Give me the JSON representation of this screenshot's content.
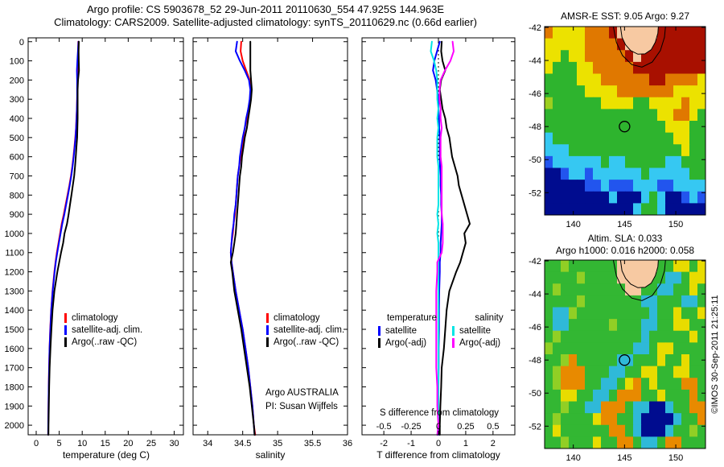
{
  "title": {
    "line1": "Argo profile: CS 5903678_52 29-Jun-2011 20110630_554 47.925S 144.963E",
    "line2": "Climatology: CARS2009. Satellite-adjusted climatology: synTS_20110629.nc (0.66d earlier)"
  },
  "colors": {
    "climatology": "#ff0000",
    "satellite_adj": "#0000ff",
    "argo": "#000000",
    "sal_satellite": "#00e5e5",
    "sal_argo": "#ff00ff",
    "land": "#f7c9a2",
    "frame": "#000000"
  },
  "depths": [
    0,
    50,
    100,
    150,
    200,
    250,
    300,
    350,
    400,
    450,
    500,
    550,
    600,
    650,
    700,
    750,
    800,
    850,
    900,
    950,
    1000,
    1050,
    1100,
    1150,
    1200,
    1300,
    1400,
    1500,
    1600,
    1700,
    1800,
    1900,
    2000,
    2050
  ],
  "chart_data": [
    {
      "id": "temperature-profile",
      "type": "line",
      "xlabel": "temperature (deg C)",
      "xlim": [
        -1.75,
        32
      ],
      "xticks": [
        0,
        5,
        10,
        15,
        20,
        25,
        30
      ],
      "ylim": [
        -20,
        2050
      ],
      "yticks": [
        0,
        100,
        200,
        300,
        400,
        500,
        600,
        700,
        800,
        900,
        1000,
        1100,
        1200,
        1300,
        1400,
        1500,
        1600,
        1700,
        1800,
        1900,
        2000
      ],
      "ylabels": true,
      "legend": [
        {
          "label": "climatology",
          "color": "#ff0000"
        },
        {
          "label": "satellite-adj. clim.",
          "color": "#0000ff"
        },
        {
          "label": "Argo(..raw -QC)",
          "color": "#000000"
        }
      ],
      "series": [
        {
          "name": "climatology",
          "color": "#ff0000",
          "values": [
            9.15,
            9.12,
            9.1,
            9.05,
            9.0,
            8.95,
            8.9,
            8.85,
            8.75,
            8.65,
            8.5,
            8.3,
            8.1,
            7.85,
            7.55,
            7.2,
            6.8,
            6.4,
            6.0,
            5.55,
            5.2,
            4.85,
            4.5,
            4.2,
            3.95,
            3.55,
            3.25,
            3.05,
            2.9,
            2.8,
            2.72,
            2.67,
            2.63,
            2.6
          ]
        },
        {
          "name": "satellite-adj. clim.",
          "color": "#0000ff",
          "values": [
            9.2,
            9.07,
            8.95,
            8.85,
            8.9,
            8.9,
            8.9,
            8.85,
            8.77,
            8.68,
            8.55,
            8.35,
            8.15,
            7.91,
            7.63,
            7.28,
            6.9,
            6.5,
            6.12,
            5.67,
            5.3,
            4.93,
            4.58,
            4.25,
            4.0,
            3.58,
            3.27,
            3.07,
            2.91,
            2.81,
            2.72,
            2.67,
            2.63,
            2.6
          ]
        },
        {
          "name": "Argo(..raw -QC)",
          "color": "#000000",
          "values": [
            9.27,
            9.22,
            9.25,
            9.3,
            9.1,
            9.0,
            9.0,
            9.0,
            9.0,
            8.95,
            8.9,
            8.75,
            8.6,
            8.45,
            8.25,
            7.95,
            7.65,
            7.35,
            7.05,
            6.7,
            6.15,
            5.85,
            5.4,
            5.0,
            4.6,
            3.95,
            3.55,
            3.3,
            3.1,
            2.92,
            2.82,
            2.74,
            2.68,
            2.65
          ]
        }
      ]
    },
    {
      "id": "salinity-profile",
      "type": "line",
      "xlabel": "salinity",
      "xlim": [
        33.79,
        36.0
      ],
      "xticks": [
        34,
        34.5,
        35,
        35.5,
        36
      ],
      "ylim": [
        -20,
        2050
      ],
      "yticks": [
        0,
        100,
        200,
        300,
        400,
        500,
        600,
        700,
        800,
        900,
        1000,
        1100,
        1200,
        1300,
        1400,
        1500,
        1600,
        1700,
        1800,
        1900,
        2000
      ],
      "ylabels": false,
      "legend": [
        {
          "label": "climatology",
          "color": "#ff0000"
        },
        {
          "label": "satellite-adj. clim.",
          "color": "#0000ff"
        },
        {
          "label": "Argo(..raw -QC)",
          "color": "#000000"
        }
      ],
      "annotation": [
        "Argo AUSTRALIA",
        "PI: Susan Wijffels"
      ],
      "series": [
        {
          "name": "climatology",
          "color": "#ff0000",
          "values": [
            34.48,
            34.47,
            34.5,
            34.55,
            34.6,
            34.62,
            34.61,
            34.58,
            34.56,
            34.53,
            34.51,
            34.49,
            34.47,
            34.45,
            34.43,
            34.42,
            34.41,
            34.4,
            34.39,
            34.37,
            34.36,
            34.34,
            34.33,
            34.34,
            34.36,
            34.4,
            34.45,
            34.5,
            34.54,
            34.58,
            34.61,
            34.64,
            34.66,
            34.68
          ]
        },
        {
          "name": "satellite-adj. clim.",
          "color": "#0000ff",
          "values": [
            34.42,
            34.4,
            34.46,
            34.53,
            34.59,
            34.61,
            34.6,
            34.58,
            34.55,
            34.53,
            34.5,
            34.48,
            34.46,
            34.45,
            34.43,
            34.42,
            34.41,
            34.4,
            34.38,
            34.37,
            34.35,
            34.34,
            34.33,
            34.34,
            34.36,
            34.4,
            34.45,
            34.5,
            34.54,
            34.58,
            34.61,
            34.64,
            34.66,
            34.67
          ]
        },
        {
          "name": "Argo(..raw -QC)",
          "color": "#000000",
          "values": [
            34.61,
            34.61,
            34.61,
            34.61,
            34.62,
            34.63,
            34.62,
            34.6,
            34.58,
            34.56,
            34.53,
            34.51,
            34.49,
            34.48,
            34.46,
            34.45,
            34.44,
            34.43,
            34.42,
            34.41,
            34.4,
            34.38,
            34.36,
            34.33,
            34.35,
            34.38,
            34.43,
            34.48,
            34.52,
            34.56,
            34.6,
            34.63,
            34.66,
            34.67
          ]
        }
      ]
    },
    {
      "id": "difference-profile",
      "type": "line",
      "xlabel": "T difference from climatology",
      "xlim": [
        -2.8,
        2.8
      ],
      "xticks": [
        -2,
        -1,
        0,
        1,
        2
      ],
      "ylim": [
        -20,
        2050
      ],
      "yticks": [
        0,
        100,
        200,
        300,
        400,
        500,
        600,
        700,
        800,
        900,
        1000,
        1100,
        1200,
        1300,
        1400,
        1500,
        1600,
        1700,
        1800,
        1900,
        2000
      ],
      "ylabels": false,
      "zero_line": true,
      "s_axis": {
        "label": "S difference from climatology",
        "ticks": [
          "-0.5",
          "-0.25",
          "0",
          "0.25",
          "0.5"
        ],
        "scale": 4
      },
      "legend_groups": [
        {
          "header": "temperature",
          "items": [
            {
              "label": "satellite",
              "color": "#0000ff"
            },
            {
              "label": "Argo(-adj)",
              "color": "#000000"
            }
          ]
        },
        {
          "header": "salinity",
          "items": [
            {
              "label": "satellite",
              "color": "#00e5e5"
            },
            {
              "label": "Argo(-adj)",
              "color": "#ff00ff"
            }
          ]
        }
      ],
      "series": [
        {
          "name": "T satellite",
          "color": "#0000ff",
          "scale": 1,
          "values": [
            0.05,
            -0.05,
            -0.15,
            -0.2,
            -0.1,
            -0.05,
            0,
            0,
            0.02,
            0.03,
            0.05,
            0.05,
            0.05,
            0.06,
            0.08,
            0.08,
            0.1,
            0.1,
            0.12,
            0.12,
            0.1,
            0.08,
            0.08,
            0.05,
            0.05,
            0.03,
            0.02,
            0.02,
            0.01,
            0.01,
            0,
            0,
            0,
            0
          ]
        },
        {
          "name": "S satellite",
          "color": "#00e5e5",
          "scale": 4,
          "values": [
            -0.06,
            -0.07,
            -0.04,
            -0.02,
            -0.01,
            -0.01,
            -0.01,
            0,
            -0.01,
            0,
            -0.01,
            -0.01,
            -0.01,
            0,
            0,
            0,
            0,
            0,
            -0.01,
            0,
            -0.01,
            0,
            0,
            0,
            0,
            0,
            0,
            0,
            0,
            0,
            0,
            0,
            0,
            -0.01
          ]
        },
        {
          "name": "T Argo(-adj)",
          "color": "#000000",
          "scale": 1,
          "values": [
            0.12,
            0.1,
            0.15,
            0.25,
            0.1,
            0.05,
            0.1,
            0.15,
            0.25,
            0.3,
            0.4,
            0.45,
            0.5,
            0.6,
            0.7,
            0.75,
            0.85,
            0.95,
            1.05,
            1.15,
            0.95,
            1.0,
            0.9,
            0.8,
            0.65,
            0.4,
            0.3,
            0.25,
            0.2,
            0.12,
            0.1,
            0.07,
            0.05,
            0.05
          ]
        },
        {
          "name": "S Argo(-adj)",
          "color": "#ff00ff",
          "scale": 4,
          "values": [
            0.13,
            0.14,
            0.11,
            0.06,
            0.02,
            0.01,
            0.01,
            0.02,
            0.02,
            0.03,
            0.02,
            0.02,
            0.02,
            0.03,
            0.03,
            0.03,
            0.03,
            0.03,
            0.03,
            0.04,
            0.04,
            0.04,
            0.03,
            -0.01,
            -0.01,
            -0.02,
            -0.02,
            -0.02,
            -0.02,
            -0.02,
            -0.01,
            -0.01,
            0,
            -0.01
          ]
        }
      ]
    }
  ],
  "maps": [
    {
      "id": "sst-map",
      "title": "AMSR-E SST: 9.05 Argo: 9.27",
      "xticks": [
        140,
        145,
        150
      ],
      "yticks": [
        -42,
        -44,
        -46,
        -48,
        -50,
        -52
      ],
      "lon_range": [
        137.2,
        152.9
      ],
      "lat_range": [
        -41.95,
        -53.35
      ],
      "marker": {
        "lon": 145,
        "lat": -48
      },
      "palette": {
        "R": "#a81000",
        "O": "#e07800",
        "Y": "#ece200",
        "g": "#9ccf1f",
        "G": "#2eb42e",
        "C": "#36c8f2",
        "B": "#2255ee",
        "N": "#000c8f",
        "L": "#f7c9a2"
      },
      "grid": [
        "OYYYYOOORLLLLLRRRRRR",
        "YYYYYOOOORLLLRRRRRRR",
        "YYGYYOOOOORLRRRRRRRR",
        "YGGGYYOOOOORRRRRRRRR",
        "GGGGYYYOOOOOORROOOOY",
        "GGGGGYYYYOOOOOOOYYYY",
        "gGGGGGGYYYYGGYYYYOYY",
        "GGGGGGGGGGGGGGYYOOYG",
        "GGGGGGGGGGGGGGGYYYGG",
        "CGGGGGGGGGGGGGGGYYGG",
        "CCCGGGGGGGGGGGGGGYGG",
        "BCCCCCCGCCGGGGGCCGGG",
        "NNBCCBCCCCCCGCCCCCGG",
        "NNNNNBBCBBBCCCBBCCCC",
        "NNNNNNNNCNNNCGCNNBCB",
        "NNNNNNNNNNNCGGCNNNNN"
      ],
      "coast": [
        [
          144.6,
          -41.95
        ],
        [
          144.75,
          -42.6
        ],
        [
          145.1,
          -43.05
        ],
        [
          145.6,
          -43.4
        ],
        [
          146.3,
          -43.62
        ],
        [
          147.0,
          -43.6
        ],
        [
          147.6,
          -43.35
        ],
        [
          148.0,
          -42.9
        ],
        [
          148.25,
          -42.35
        ],
        [
          148.3,
          -41.95
        ]
      ],
      "contour": [
        [
          143.9,
          -41.95
        ],
        [
          144.2,
          -42.9
        ],
        [
          144.8,
          -43.7
        ],
        [
          145.7,
          -44.25
        ],
        [
          146.7,
          -44.4
        ],
        [
          147.7,
          -44.1
        ],
        [
          148.5,
          -43.4
        ],
        [
          148.9,
          -42.6
        ],
        [
          149.0,
          -41.95
        ]
      ]
    },
    {
      "id": "sla-map",
      "title_line1": "Altim. SLA: 0.033",
      "title_line2": "Argo h1000: 0.016 h2000: 0.058",
      "watermark": "©IMOS 30-Sep-2011 21:25:11",
      "xticks": [
        140,
        145,
        150
      ],
      "yticks": [
        -42,
        -44,
        -46,
        -48,
        -50,
        -52
      ],
      "lon_range": [
        137.2,
        152.9
      ],
      "lat_range": [
        -41.95,
        -53.35
      ],
      "marker": {
        "lon": 145,
        "lat": -48
      },
      "palette": {
        "O": "#e88a00",
        "Y": "#e8dc00",
        "g": "#91cf25",
        "G": "#33b733",
        "C": "#2fb9d8",
        "B": "#2255ee",
        "N": "#000c8f",
        "L": "#f7c9a2"
      },
      "grid": [
        "GGgGGGGGGLLLLLGGYYGY",
        "GGGGgGGGGLLLLGGCCGYY",
        "GgGGGGGGGGLLGGCCGGYG",
        "GGGGgGGGGGGGCCGGGCCG",
        "GCCgGGGGGGGGGCGGYGGY",
        "GCCGGGGGgGGGCCGGYYGG",
        "GgGGGGGGGGGGCGGGGGYG",
        "gGGGGGGGGGGCCGYYGGGG",
        "GGgOGGGGGCCGGGYGGYGG",
        "GgOOOGGGCCGGYYGGYYGG",
        "GgOOOGGCCGYOGYGGGOOG",
        "GGYYGGCCGOOOGGYGGGOG",
        "GGgGGCCOOOGCCNNCGGOO",
        "GgGGGGYOOGGCNNNNCGGO",
        "GYGGGGGGOOGCNNNCGGgG",
        "GGgGGGYGGOOGCCGOOGGG"
      ],
      "coast": [
        [
          144.6,
          -41.95
        ],
        [
          144.75,
          -42.6
        ],
        [
          145.1,
          -43.05
        ],
        [
          145.6,
          -43.4
        ],
        [
          146.3,
          -43.62
        ],
        [
          147.0,
          -43.6
        ],
        [
          147.6,
          -43.35
        ],
        [
          148.0,
          -42.9
        ],
        [
          148.25,
          -42.35
        ],
        [
          148.3,
          -41.95
        ]
      ],
      "contour": [
        [
          143.9,
          -41.95
        ],
        [
          144.2,
          -42.9
        ],
        [
          144.8,
          -43.7
        ],
        [
          145.7,
          -44.25
        ],
        [
          146.7,
          -44.4
        ],
        [
          147.7,
          -44.1
        ],
        [
          148.5,
          -43.4
        ],
        [
          148.9,
          -42.6
        ],
        [
          149.0,
          -41.95
        ]
      ]
    }
  ]
}
